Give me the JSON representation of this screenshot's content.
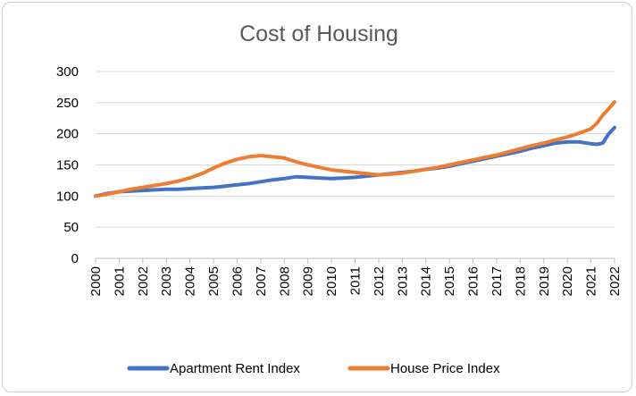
{
  "chart_data": {
    "type": "line",
    "title": "Cost of Housing",
    "xlabel": "",
    "ylabel": "",
    "ylim": [
      0,
      300
    ],
    "yticks": [
      0,
      50,
      100,
      150,
      200,
      250,
      300
    ],
    "xlim": [
      2000,
      2022
    ],
    "xticks": [
      "2000",
      "2001",
      "2002",
      "2003",
      "2004",
      "2005",
      "2006",
      "2007",
      "2008",
      "2009",
      "2010",
      "2011",
      "2012",
      "2013",
      "2014",
      "2015",
      "2016",
      "2017",
      "2018",
      "2019",
      "2020",
      "2021",
      "2022"
    ],
    "grid": true,
    "legend_position": "bottom",
    "series": [
      {
        "name": "Apartment Rent Index",
        "color": "#4472c4",
        "x": [
          2000,
          2000.5,
          2001,
          2001.5,
          2002,
          2002.5,
          2003,
          2003.5,
          2004,
          2004.5,
          2005,
          2005.5,
          2006,
          2006.5,
          2007,
          2007.5,
          2008,
          2008.5,
          2009,
          2009.5,
          2010,
          2010.5,
          2011,
          2011.5,
          2012,
          2012.5,
          2013,
          2013.5,
          2014,
          2014.5,
          2015,
          2015.5,
          2016,
          2016.5,
          2017,
          2017.5,
          2018,
          2018.5,
          2019,
          2019.5,
          2020,
          2020.5,
          2021,
          2021.25,
          2021.5,
          2021.75,
          2022
        ],
        "values": [
          100,
          104,
          107,
          108,
          109,
          110,
          111,
          111,
          112,
          113,
          114,
          116,
          118,
          120,
          123,
          126,
          128,
          131,
          130,
          129,
          128,
          129,
          130,
          132,
          134,
          136,
          138,
          140,
          143,
          145,
          148,
          152,
          156,
          160,
          164,
          168,
          172,
          177,
          181,
          185,
          187,
          187,
          184,
          183,
          185,
          200,
          210
        ]
      },
      {
        "name": "House Price Index",
        "color": "#ed7d31",
        "x": [
          2000,
          2000.5,
          2001,
          2001.5,
          2002,
          2002.5,
          2003,
          2003.5,
          2004,
          2004.5,
          2005,
          2005.5,
          2006,
          2006.5,
          2007,
          2007.5,
          2008,
          2008.5,
          2009,
          2009.5,
          2010,
          2010.5,
          2011,
          2011.5,
          2012,
          2012.5,
          2013,
          2013.5,
          2014,
          2014.5,
          2015,
          2015.5,
          2016,
          2016.5,
          2017,
          2017.5,
          2018,
          2018.5,
          2019,
          2019.5,
          2020,
          2020.5,
          2021,
          2021.25,
          2021.5,
          2021.75,
          2022
        ],
        "values": [
          100,
          103,
          107,
          111,
          114,
          117,
          120,
          124,
          129,
          136,
          145,
          153,
          159,
          163,
          165,
          163,
          161,
          155,
          150,
          146,
          142,
          140,
          138,
          136,
          134,
          135,
          137,
          140,
          143,
          146,
          150,
          154,
          158,
          162,
          166,
          171,
          176,
          181,
          185,
          190,
          195,
          201,
          208,
          217,
          230,
          240,
          251
        ]
      }
    ]
  }
}
